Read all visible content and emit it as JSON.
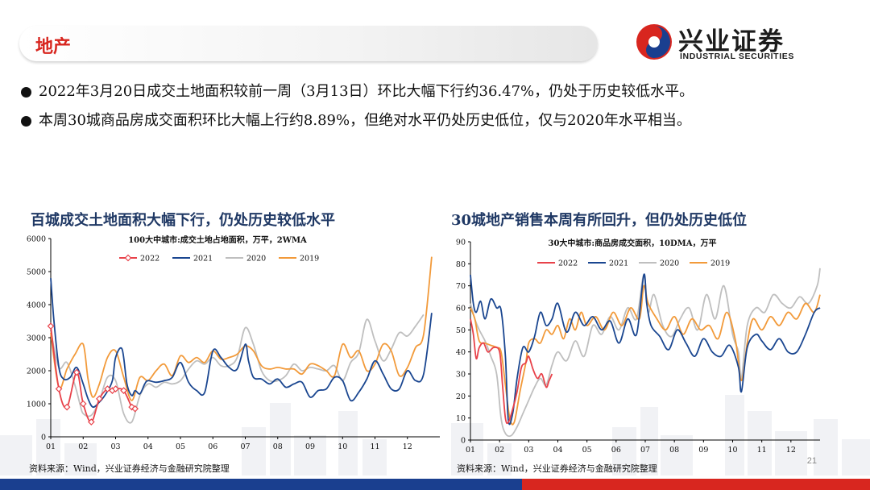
{
  "header": {
    "title": "地产"
  },
  "logo": {
    "name": "兴业证券",
    "sub": "INDUSTRIAL SECURITIES"
  },
  "bullets": [
    "2022年3月20日成交土地面积较前一周（3月13日）环比大幅下行约36.47%，仍处于历史较低水平。",
    "本周30城商品房成交面积环比大幅上行约8.89%，但绝对水平仍处历史低位，仅与2020年水平相当。"
  ],
  "colors": {
    "accent_red": "#d8261f",
    "title_blue": "#1f3864",
    "s2022": "#e8424a",
    "s2021": "#1a4690",
    "s2020": "#bfbfbf",
    "s2019": "#f29a3a"
  },
  "chart_data": [
    {
      "type": "line",
      "title": "百城成交土地面积大幅下行，仍处历史较低水平",
      "subtitle": "100大中城市:成交土地占地面积，万平，2WMA",
      "x_ticks": [
        "01",
        "02",
        "03",
        "04",
        "05",
        "06",
        "07",
        "08",
        "09",
        "10",
        "11",
        "12"
      ],
      "ylim": [
        0,
        6000
      ],
      "y_ticks": [
        "0",
        "1000",
        "2000",
        "3000",
        "4000",
        "5000",
        "6000"
      ],
      "series": [
        {
          "name": "2022",
          "color": "#e8424a",
          "marker": "diamond",
          "x": [
            1.0,
            1.25,
            1.5,
            1.8,
            2.0,
            2.25,
            2.5,
            2.75,
            2.9,
            3.0,
            3.25,
            3.5,
            3.6
          ],
          "values": [
            3350,
            1450,
            900,
            1950,
            1000,
            450,
            1150,
            1450,
            1400,
            1450,
            1400,
            900,
            850
          ]
        },
        {
          "name": "2021",
          "color": "#1a4690",
          "x": [
            1.0,
            1.1,
            1.25,
            1.4,
            1.6,
            1.8,
            2.0,
            2.15,
            2.3,
            2.5,
            2.7,
            2.9,
            3.0,
            3.2,
            3.35,
            3.5,
            3.6,
            3.75,
            3.9,
            4.0,
            4.25,
            4.5,
            4.75,
            5.0,
            5.25,
            5.5,
            5.75,
            6.0,
            6.25,
            6.5,
            6.75,
            7.0,
            7.1,
            7.25,
            7.5,
            7.75,
            8.0,
            8.25,
            8.5,
            8.75,
            9.0,
            9.25,
            9.5,
            9.75,
            10.0,
            10.25,
            10.5,
            10.75,
            11.0,
            11.25,
            11.5,
            11.75,
            12.0,
            12.25,
            12.5,
            12.75
          ],
          "values": [
            4800,
            3500,
            2100,
            1750,
            1800,
            2100,
            1600,
            1150,
            900,
            1050,
            1300,
            1700,
            2400,
            2650,
            1600,
            1250,
            1400,
            1300,
            1600,
            1700,
            1650,
            1700,
            1800,
            2250,
            1650,
            1400,
            1350,
            2600,
            2400,
            2100,
            2050,
            2800,
            2300,
            1800,
            1750,
            1600,
            1750,
            1500,
            1600,
            1650,
            1200,
            1400,
            1450,
            1800,
            1700,
            1100,
            1350,
            1750,
            2300,
            1900,
            1450,
            1450,
            2000,
            1700,
            1900,
            3750
          ]
        },
        {
          "name": "2020",
          "color": "#bfbfbf",
          "x": [
            1.0,
            1.25,
            1.5,
            1.75,
            1.9,
            2.0,
            2.25,
            2.5,
            2.75,
            3.0,
            3.25,
            3.5,
            3.75,
            4.0,
            4.25,
            4.5,
            4.75,
            5.0,
            5.25,
            5.5,
            5.75,
            6.0,
            6.25,
            6.5,
            6.75,
            7.0,
            7.25,
            7.5,
            7.75,
            8.0,
            8.25,
            8.5,
            8.75,
            9.0,
            9.25,
            9.5,
            9.75,
            10.0,
            10.25,
            10.5,
            10.75,
            11.0,
            11.25,
            11.5,
            11.75,
            12.0,
            12.25,
            12.5
          ],
          "values": [
            3200,
            2100,
            2250,
            1550,
            1000,
            700,
            650,
            1100,
            1800,
            1700,
            700,
            450,
            1250,
            1600,
            1500,
            1650,
            1600,
            1700,
            2050,
            2300,
            2200,
            2400,
            2150,
            2150,
            2400,
            3300,
            2800,
            2000,
            1700,
            1700,
            1850,
            2200,
            2000,
            2100,
            2050,
            2000,
            2150,
            1700,
            2250,
            2550,
            3550,
            2900,
            2300,
            2650,
            3150,
            3050,
            3350,
            3700
          ]
        },
        {
          "name": "2019",
          "color": "#f29a3a",
          "x": [
            1.0,
            1.25,
            1.5,
            1.75,
            2.0,
            2.15,
            2.3,
            2.5,
            2.75,
            3.0,
            3.25,
            3.5,
            3.75,
            4.0,
            4.25,
            4.5,
            4.75,
            5.0,
            5.25,
            5.5,
            5.75,
            6.0,
            6.25,
            6.5,
            6.75,
            7.0,
            7.25,
            7.5,
            7.75,
            8.0,
            8.25,
            8.5,
            8.75,
            9.0,
            9.25,
            9.5,
            9.75,
            10.0,
            10.25,
            10.5,
            10.75,
            11.0,
            11.25,
            11.5,
            11.75,
            12.0,
            12.25,
            12.5,
            12.75
          ],
          "values": [
            3150,
            1500,
            2050,
            2500,
            2800,
            1750,
            1200,
            1600,
            2400,
            2600,
            1800,
            1100,
            1800,
            1700,
            2000,
            2200,
            1850,
            2450,
            2250,
            2400,
            2250,
            2600,
            2350,
            2400,
            2500,
            2750,
            2600,
            2150,
            2050,
            2100,
            2050,
            2050,
            1900,
            2200,
            2150,
            2000,
            1850,
            2800,
            2400,
            2600,
            2000,
            2200,
            2800,
            2600,
            1850,
            2100,
            2700,
            3100,
            5450
          ]
        }
      ]
    },
    {
      "type": "line",
      "title": "30城地产销售本周有所回升，但仍处历史低位",
      "subtitle": "30大中城市:商品房成交面积，10DMA，万平",
      "x_ticks": [
        "01",
        "02",
        "03",
        "04",
        "05",
        "06",
        "07",
        "08",
        "09",
        "10",
        "11",
        "12"
      ],
      "ylim": [
        0,
        90
      ],
      "y_ticks": [
        "0",
        "10",
        "20",
        "30",
        "40",
        "50",
        "60",
        "70",
        "80",
        "90"
      ],
      "series": [
        {
          "name": "2022",
          "color": "#e8424a",
          "x": [
            1.0,
            1.1,
            1.2,
            1.3,
            1.45,
            1.6,
            1.8,
            2.0,
            2.1,
            2.2,
            2.3,
            2.45,
            2.6,
            2.75,
            2.9,
            3.0,
            3.15,
            3.3,
            3.45,
            3.6,
            3.7,
            3.8
          ],
          "values": [
            55,
            48,
            37,
            42,
            44,
            40,
            42,
            40,
            25,
            10,
            8,
            14,
            22,
            33,
            35,
            38,
            32,
            28,
            30,
            24,
            27,
            30
          ]
        },
        {
          "name": "2021",
          "color": "#1a4690",
          "x": [
            1.0,
            1.1,
            1.2,
            1.35,
            1.5,
            1.7,
            1.9,
            2.05,
            2.2,
            2.3,
            2.45,
            2.6,
            2.8,
            3.0,
            3.2,
            3.4,
            3.6,
            3.8,
            4.0,
            4.3,
            4.6,
            4.9,
            5.2,
            5.5,
            5.8,
            6.1,
            6.4,
            6.7,
            6.95,
            7.05,
            7.2,
            7.5,
            7.8,
            8.1,
            8.4,
            8.7,
            9.0,
            9.3,
            9.6,
            9.9,
            10.2,
            10.3,
            10.5,
            10.8,
            11.0,
            11.3,
            11.6,
            11.9,
            12.2,
            12.5,
            12.8,
            13.0
          ],
          "values": [
            75,
            62,
            58,
            63,
            55,
            64,
            60,
            59,
            38,
            9,
            12,
            28,
            42,
            40,
            47,
            58,
            52,
            55,
            62,
            49,
            58,
            52,
            56,
            50,
            54,
            44,
            55,
            48,
            75,
            62,
            52,
            47,
            41,
            50,
            44,
            38,
            46,
            40,
            38,
            43,
            33,
            22,
            42,
            48,
            45,
            41,
            46,
            40,
            40,
            48,
            58,
            60
          ]
        },
        {
          "name": "2020",
          "color": "#bfbfbf",
          "x": [
            1.0,
            1.15,
            1.3,
            1.5,
            1.7,
            1.9,
            2.05,
            2.2,
            2.4,
            2.6,
            2.8,
            3.0,
            3.2,
            3.4,
            3.6,
            3.8,
            4.0,
            4.3,
            4.6,
            4.9,
            5.2,
            5.5,
            5.8,
            6.1,
            6.4,
            6.7,
            6.95,
            7.1,
            7.3,
            7.6,
            7.9,
            8.2,
            8.5,
            8.8,
            9.1,
            9.4,
            9.7,
            10.0,
            10.2,
            10.3,
            10.5,
            10.8,
            11.1,
            11.4,
            11.7,
            12.0,
            12.3,
            12.6,
            12.9,
            13.0
          ],
          "values": [
            62,
            55,
            50,
            45,
            38,
            30,
            10,
            3,
            2,
            6,
            12,
            18,
            24,
            28,
            25,
            34,
            40,
            36,
            45,
            38,
            52,
            48,
            56,
            50,
            60,
            55,
            75,
            58,
            66,
            52,
            47,
            55,
            60,
            50,
            66,
            55,
            70,
            48,
            40,
            28,
            52,
            60,
            58,
            66,
            62,
            60,
            65,
            62,
            70,
            78
          ]
        },
        {
          "name": "2019",
          "color": "#f29a3a",
          "x": [
            1.0,
            1.15,
            1.3,
            1.5,
            1.7,
            1.9,
            2.05,
            2.2,
            2.35,
            2.5,
            2.7,
            2.9,
            3.0,
            3.2,
            3.4,
            3.6,
            3.8,
            4.0,
            4.2,
            4.4,
            4.6,
            4.8,
            5.0,
            5.3,
            5.6,
            5.9,
            6.2,
            6.5,
            6.8,
            6.95,
            7.1,
            7.4,
            7.7,
            8.0,
            8.3,
            8.6,
            8.9,
            9.2,
            9.5,
            9.8,
            10.1,
            10.3,
            10.5,
            10.7,
            11.0,
            11.3,
            11.6,
            11.9,
            12.2,
            12.5,
            12.8,
            13.0
          ],
          "values": [
            60,
            55,
            45,
            44,
            43,
            42,
            40,
            25,
            10,
            8,
            22,
            35,
            44,
            46,
            44,
            50,
            48,
            52,
            46,
            55,
            50,
            58,
            52,
            56,
            50,
            58,
            52,
            60,
            55,
            70,
            62,
            55,
            50,
            56,
            48,
            55,
            50,
            52,
            46,
            58,
            45,
            27,
            44,
            55,
            50,
            56,
            52,
            58,
            55,
            62,
            58,
            66
          ]
        }
      ]
    }
  ],
  "charts_meta": [
    {
      "source": "资料来源：Wind，兴业证券经济与金融研究院整理"
    },
    {
      "source": "资料来源：Wind，兴业证券经济与金融研究院整理"
    }
  ],
  "page_number": "21"
}
